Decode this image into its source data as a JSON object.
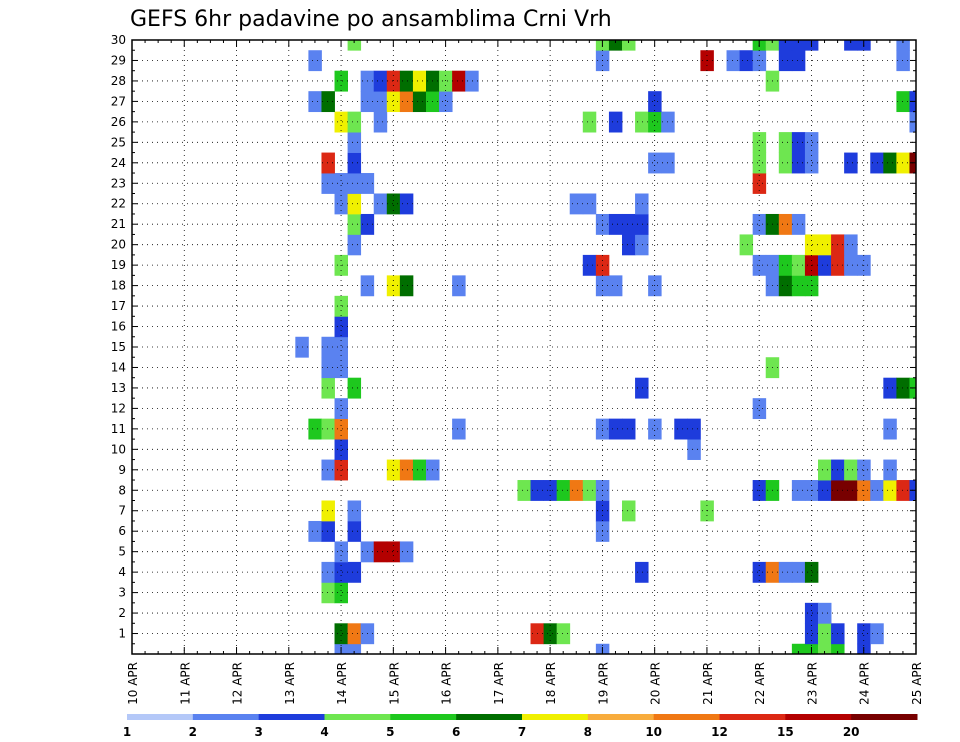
{
  "chart_data": {
    "type": "heatmap",
    "title": "GEFS 6hr padavine po ansamblima Crni Vrh",
    "xlabel": "",
    "ylabel": "",
    "x_tick_labels": [
      "10 APR",
      "11 APR",
      "12 APR",
      "13 APR",
      "14 APR",
      "15 APR",
      "16 APR",
      "17 APR",
      "18 APR",
      "19 APR",
      "20 APR",
      "21 APR",
      "22 APR",
      "23 APR",
      "24 APR",
      "25 APR"
    ],
    "x_range_days": [
      10,
      25
    ],
    "y_tick_labels": [
      "1",
      "2",
      "3",
      "4",
      "5",
      "6",
      "7",
      "8",
      "9",
      "10",
      "11",
      "12",
      "13",
      "14",
      "15",
      "16",
      "17",
      "18",
      "19",
      "20",
      "21",
      "22",
      "23",
      "24",
      "25",
      "26",
      "27",
      "28",
      "29",
      "30"
    ],
    "y_range": [
      0,
      30
    ],
    "grid": true,
    "colorbar": {
      "labels": [
        "1",
        "2",
        "3",
        "4",
        "5",
        "6",
        "7",
        "8",
        "10",
        "12",
        "15",
        "20"
      ],
      "colors": [
        "#b4c8f8",
        "#5a82f0",
        "#1e3cdc",
        "#6ee650",
        "#1ec81e",
        "#006e00",
        "#f0f000",
        "#f8ac3c",
        "#f07814",
        "#dc2814",
        "#b40000",
        "#780000"
      ]
    },
    "cells": [
      [
        14.0,
        0,
        1
      ],
      [
        14.25,
        0,
        1
      ],
      [
        19.0,
        0,
        1
      ],
      [
        22.75,
        0,
        4
      ],
      [
        23.0,
        0,
        4
      ],
      [
        23.25,
        0,
        3
      ],
      [
        23.5,
        0,
        4
      ],
      [
        24.0,
        0,
        2
      ],
      [
        14.0,
        1,
        5
      ],
      [
        14.25,
        1,
        8
      ],
      [
        14.5,
        1,
        1
      ],
      [
        17.75,
        1,
        9
      ],
      [
        18.0,
        1,
        5
      ],
      [
        18.25,
        1,
        3
      ],
      [
        23.0,
        1,
        2
      ],
      [
        23.25,
        1,
        3
      ],
      [
        23.5,
        1,
        2
      ],
      [
        24.0,
        1,
        2
      ],
      [
        24.25,
        1,
        1
      ],
      [
        23.0,
        2,
        2
      ],
      [
        23.25,
        2,
        1
      ],
      [
        13.75,
        3,
        3
      ],
      [
        14.0,
        3,
        4
      ],
      [
        13.75,
        4,
        1
      ],
      [
        14.0,
        4,
        2
      ],
      [
        14.25,
        4,
        2
      ],
      [
        19.75,
        4,
        2
      ],
      [
        22.0,
        4,
        2
      ],
      [
        22.25,
        4,
        8
      ],
      [
        22.5,
        4,
        1
      ],
      [
        22.75,
        4,
        1
      ],
      [
        23.0,
        4,
        5
      ],
      [
        14.0,
        5,
        1
      ],
      [
        14.5,
        5,
        1
      ],
      [
        14.75,
        5,
        10
      ],
      [
        15.0,
        5,
        10
      ],
      [
        15.25,
        5,
        1
      ],
      [
        13.5,
        6,
        1
      ],
      [
        13.75,
        6,
        2
      ],
      [
        14.25,
        6,
        2
      ],
      [
        19.0,
        6,
        1
      ],
      [
        13.75,
        7,
        6
      ],
      [
        14.25,
        7,
        1
      ],
      [
        19.0,
        7,
        2
      ],
      [
        19.5,
        7,
        3
      ],
      [
        21.0,
        7,
        3
      ],
      [
        17.5,
        8,
        3
      ],
      [
        17.75,
        8,
        2
      ],
      [
        18.0,
        8,
        2
      ],
      [
        18.25,
        8,
        4
      ],
      [
        18.5,
        8,
        8
      ],
      [
        18.75,
        8,
        3
      ],
      [
        19.0,
        8,
        1
      ],
      [
        22.0,
        8,
        2
      ],
      [
        22.25,
        8,
        4
      ],
      [
        22.75,
        8,
        1
      ],
      [
        23.0,
        8,
        1
      ],
      [
        23.25,
        8,
        2
      ],
      [
        23.5,
        8,
        11
      ],
      [
        23.75,
        8,
        11
      ],
      [
        24.0,
        8,
        8
      ],
      [
        24.25,
        8,
        1
      ],
      [
        24.5,
        8,
        6
      ],
      [
        24.75,
        8,
        9
      ],
      [
        25.0,
        8,
        2
      ],
      [
        13.75,
        9,
        1
      ],
      [
        14.0,
        9,
        9
      ],
      [
        15.0,
        9,
        6
      ],
      [
        15.25,
        9,
        8
      ],
      [
        15.5,
        9,
        4
      ],
      [
        15.75,
        9,
        1
      ],
      [
        23.25,
        9,
        3
      ],
      [
        23.5,
        9,
        2
      ],
      [
        23.75,
        9,
        3
      ],
      [
        24.0,
        9,
        1
      ],
      [
        24.5,
        9,
        1
      ],
      [
        14.0,
        10,
        2
      ],
      [
        20.75,
        10,
        1
      ],
      [
        13.5,
        11,
        4
      ],
      [
        13.75,
        11,
        3
      ],
      [
        14.0,
        11,
        8
      ],
      [
        16.25,
        11,
        1
      ],
      [
        19.0,
        11,
        1
      ],
      [
        19.25,
        11,
        2
      ],
      [
        19.5,
        11,
        2
      ],
      [
        20.0,
        11,
        1
      ],
      [
        20.5,
        11,
        2
      ],
      [
        20.75,
        11,
        2
      ],
      [
        24.5,
        11,
        1
      ],
      [
        14.0,
        12,
        1
      ],
      [
        22.0,
        12,
        1
      ],
      [
        13.75,
        13,
        3
      ],
      [
        14.25,
        13,
        4
      ],
      [
        19.75,
        13,
        2
      ],
      [
        24.5,
        13,
        2
      ],
      [
        24.75,
        13,
        5
      ],
      [
        25.0,
        13,
        4
      ],
      [
        13.75,
        14,
        1
      ],
      [
        14.0,
        14,
        1
      ],
      [
        22.25,
        14,
        3
      ],
      [
        13.25,
        15,
        1
      ],
      [
        13.75,
        15,
        1
      ],
      [
        14.0,
        15,
        1
      ],
      [
        14.0,
        16,
        2
      ],
      [
        14.0,
        17,
        3
      ],
      [
        14.5,
        18,
        1
      ],
      [
        15.0,
        18,
        6
      ],
      [
        15.25,
        18,
        5
      ],
      [
        16.25,
        18,
        1
      ],
      [
        19.0,
        18,
        1
      ],
      [
        19.25,
        18,
        1
      ],
      [
        20.0,
        18,
        1
      ],
      [
        22.25,
        18,
        1
      ],
      [
        22.5,
        18,
        5
      ],
      [
        22.75,
        18,
        4
      ],
      [
        23.0,
        18,
        4
      ],
      [
        14.0,
        19,
        3
      ],
      [
        18.75,
        19,
        2
      ],
      [
        19.0,
        19,
        9
      ],
      [
        22.0,
        19,
        1
      ],
      [
        22.25,
        19,
        1
      ],
      [
        22.5,
        19,
        4
      ],
      [
        22.75,
        19,
        3
      ],
      [
        23.0,
        19,
        10
      ],
      [
        23.25,
        19,
        2
      ],
      [
        23.5,
        19,
        9
      ],
      [
        23.75,
        19,
        1
      ],
      [
        24.0,
        19,
        1
      ],
      [
        14.25,
        20,
        1
      ],
      [
        19.5,
        20,
        2
      ],
      [
        19.75,
        20,
        1
      ],
      [
        21.75,
        20,
        3
      ],
      [
        23.0,
        20,
        6
      ],
      [
        23.25,
        20,
        6
      ],
      [
        23.5,
        20,
        9
      ],
      [
        23.75,
        20,
        1
      ],
      [
        14.25,
        21,
        3
      ],
      [
        14.5,
        21,
        2
      ],
      [
        19.0,
        21,
        1
      ],
      [
        19.25,
        21,
        2
      ],
      [
        19.5,
        21,
        2
      ],
      [
        19.75,
        21,
        2
      ],
      [
        22.0,
        21,
        1
      ],
      [
        22.25,
        21,
        5
      ],
      [
        22.5,
        21,
        8
      ],
      [
        22.75,
        21,
        1
      ],
      [
        14.0,
        22,
        1
      ],
      [
        14.25,
        22,
        6
      ],
      [
        14.75,
        22,
        1
      ],
      [
        15.0,
        22,
        5
      ],
      [
        15.25,
        22,
        2
      ],
      [
        18.5,
        22,
        1
      ],
      [
        18.75,
        22,
        1
      ],
      [
        19.75,
        22,
        1
      ],
      [
        13.75,
        23,
        1
      ],
      [
        14.0,
        23,
        1
      ],
      [
        14.25,
        23,
        1
      ],
      [
        14.5,
        23,
        1
      ],
      [
        22.0,
        23,
        9
      ],
      [
        13.75,
        24,
        9
      ],
      [
        14.25,
        24,
        2
      ],
      [
        20.0,
        24,
        1
      ],
      [
        20.25,
        24,
        1
      ],
      [
        22.0,
        24,
        3
      ],
      [
        22.5,
        24,
        3
      ],
      [
        22.75,
        24,
        2
      ],
      [
        23.0,
        24,
        1
      ],
      [
        23.75,
        24,
        2
      ],
      [
        24.25,
        24,
        2
      ],
      [
        24.5,
        24,
        5
      ],
      [
        24.75,
        24,
        6
      ],
      [
        25.0,
        24,
        11
      ],
      [
        14.25,
        25,
        1
      ],
      [
        22.0,
        25,
        3
      ],
      [
        22.5,
        25,
        3
      ],
      [
        22.75,
        25,
        2
      ],
      [
        23.0,
        25,
        1
      ],
      [
        14.0,
        26,
        6
      ],
      [
        14.25,
        26,
        3
      ],
      [
        14.75,
        26,
        1
      ],
      [
        18.75,
        26,
        3
      ],
      [
        19.25,
        26,
        2
      ],
      [
        19.75,
        26,
        3
      ],
      [
        20.0,
        26,
        4
      ],
      [
        20.25,
        26,
        1
      ],
      [
        25.0,
        26,
        1
      ],
      [
        13.5,
        27,
        1
      ],
      [
        13.75,
        27,
        5
      ],
      [
        14.5,
        27,
        1
      ],
      [
        14.75,
        27,
        1
      ],
      [
        15.0,
        27,
        6
      ],
      [
        15.25,
        27,
        8
      ],
      [
        15.5,
        27,
        5
      ],
      [
        15.75,
        27,
        4
      ],
      [
        16.0,
        27,
        1
      ],
      [
        20.0,
        27,
        2
      ],
      [
        24.75,
        27,
        4
      ],
      [
        25.0,
        27,
        2
      ],
      [
        14.0,
        28,
        4
      ],
      [
        14.5,
        28,
        1
      ],
      [
        14.75,
        28,
        2
      ],
      [
        15.0,
        28,
        9
      ],
      [
        15.25,
        28,
        5
      ],
      [
        15.5,
        28,
        6
      ],
      [
        15.75,
        28,
        5
      ],
      [
        16.0,
        28,
        3
      ],
      [
        16.25,
        28,
        10
      ],
      [
        16.5,
        28,
        1
      ],
      [
        22.25,
        28,
        3
      ],
      [
        13.5,
        29,
        1
      ],
      [
        19.0,
        29,
        1
      ],
      [
        21.0,
        29,
        10
      ],
      [
        21.5,
        29,
        1
      ],
      [
        21.75,
        29,
        2
      ],
      [
        22.0,
        29,
        1
      ],
      [
        22.5,
        29,
        2
      ],
      [
        22.75,
        29,
        2
      ],
      [
        24.75,
        29,
        1
      ],
      [
        14.25,
        30,
        3
      ],
      [
        19.0,
        30,
        3
      ],
      [
        19.25,
        30,
        5
      ],
      [
        19.5,
        30,
        3
      ],
      [
        22.0,
        30,
        4
      ],
      [
        22.25,
        30,
        3
      ],
      [
        22.5,
        30,
        2
      ],
      [
        22.75,
        30,
        2
      ],
      [
        23.0,
        30,
        2
      ],
      [
        23.75,
        30,
        2
      ],
      [
        24.0,
        30,
        2
      ],
      [
        24.75,
        30,
        1
      ]
    ]
  }
}
